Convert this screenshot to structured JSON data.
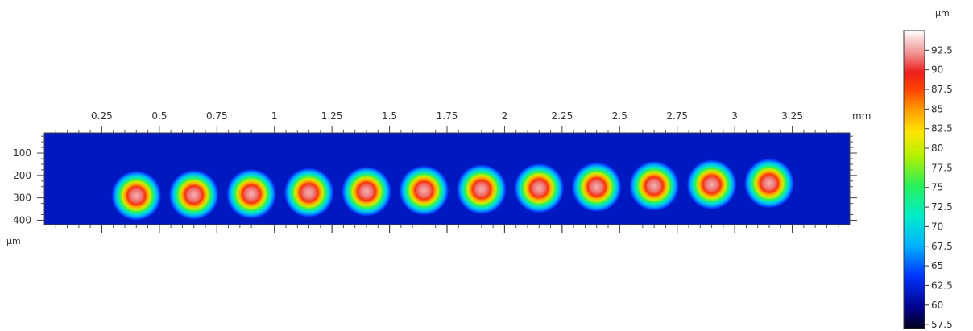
{
  "chart_data": {
    "type": "heatmap",
    "title": "",
    "x_axis": {
      "ticks": [
        "0.25",
        "0.5",
        "0.75",
        "1",
        "1.25",
        "1.5",
        "1.75",
        "2",
        "2.25",
        "2.5",
        "2.75",
        "3",
        "3.25"
      ],
      "tick_values": [
        0.25,
        0.5,
        0.75,
        1,
        1.25,
        1.5,
        1.75,
        2,
        2.25,
        2.5,
        2.75,
        3,
        3.25
      ],
      "unit": "mm",
      "range": [
        0.0,
        3.5
      ]
    },
    "y_axis": {
      "ticks": [
        "100",
        "200",
        "300",
        "400"
      ],
      "tick_values": [
        100,
        200,
        300,
        400
      ],
      "unit": "µm",
      "range": [
        10,
        420
      ],
      "direction": "top-to-bottom"
    },
    "colorbar": {
      "unit": "µm",
      "ticks": [
        "92.5",
        "90",
        "87.5",
        "85",
        "82.5",
        "80",
        "77.5",
        "75",
        "72.5",
        "70",
        "67.5",
        "65",
        "62.5",
        "60",
        "57.5"
      ],
      "tick_values": [
        92.5,
        90,
        87.5,
        85,
        82.5,
        80,
        77.5,
        75,
        72.5,
        70,
        67.5,
        65,
        62.5,
        60,
        57.5
      ],
      "range": [
        57.0,
        95.0
      ],
      "placement": "right"
    },
    "background_level": 61.5,
    "peaks": [
      {
        "x": 0.4,
        "y": 290,
        "peak": 93
      },
      {
        "x": 0.65,
        "y": 287,
        "peak": 93
      },
      {
        "x": 0.9,
        "y": 283,
        "peak": 93
      },
      {
        "x": 1.15,
        "y": 277,
        "peak": 93
      },
      {
        "x": 1.4,
        "y": 272,
        "peak": 93
      },
      {
        "x": 1.65,
        "y": 267,
        "peak": 93
      },
      {
        "x": 1.9,
        "y": 262,
        "peak": 93
      },
      {
        "x": 2.15,
        "y": 257,
        "peak": 93
      },
      {
        "x": 2.4,
        "y": 252,
        "peak": 93
      },
      {
        "x": 2.65,
        "y": 247,
        "peak": 93
      },
      {
        "x": 2.9,
        "y": 241,
        "peak": 93
      },
      {
        "x": 3.15,
        "y": 235,
        "peak": 93
      }
    ],
    "grid": false
  }
}
